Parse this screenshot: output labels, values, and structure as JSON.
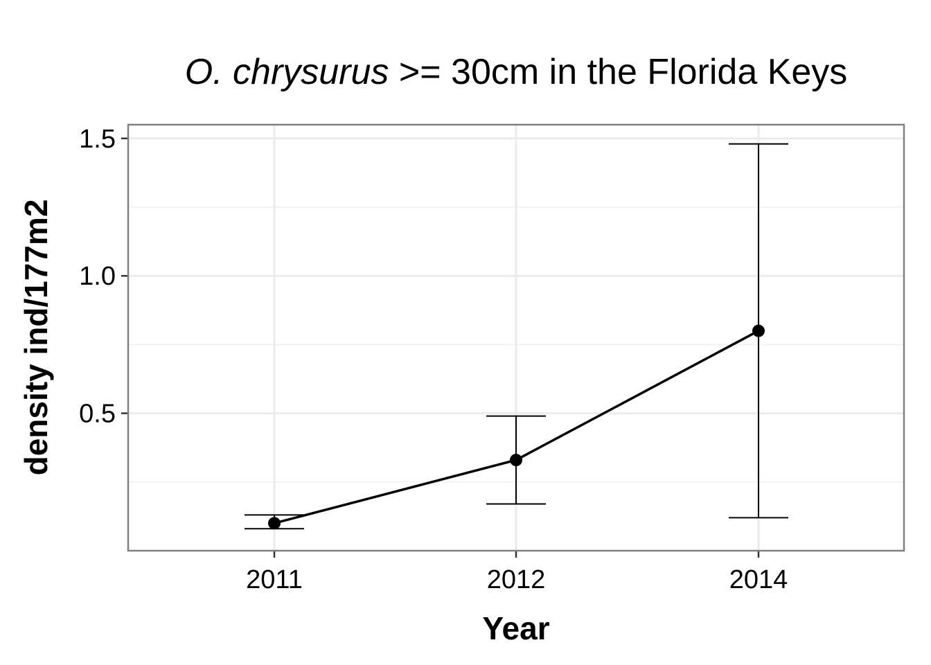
{
  "chart_data": {
    "type": "line",
    "title_italic": "O. chrysurus",
    "title_rest": " >= 30cm in the Florida Keys",
    "xlabel": "Year",
    "ylabel": "density ind/177m2",
    "categories": [
      "2011",
      "2012",
      "2014"
    ],
    "series": [
      {
        "values": [
          0.1,
          0.33,
          0.8
        ],
        "error_low": [
          0.08,
          0.17,
          0.12
        ],
        "error_high": [
          0.13,
          0.49,
          1.48
        ]
      }
    ],
    "ylim": [
      0.0,
      1.55
    ],
    "yticks": [
      0.5,
      1.0,
      1.5
    ],
    "ytick_labels": [
      "0.5",
      "1.0",
      "1.5"
    ],
    "grid": true,
    "legend": "none"
  }
}
